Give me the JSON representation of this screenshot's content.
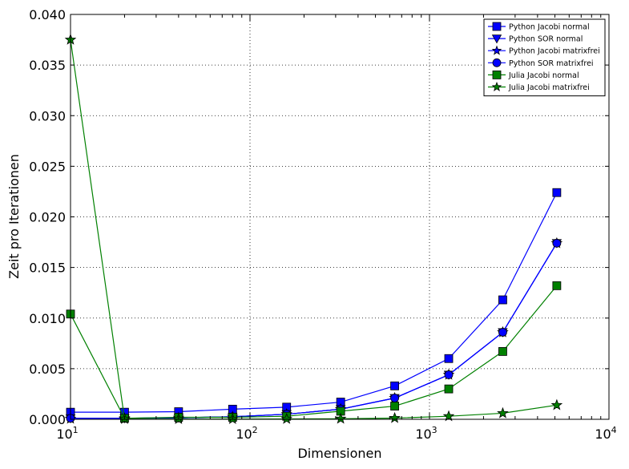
{
  "chart_data": {
    "type": "line",
    "xlabel": "Dimensionen",
    "ylabel": "Zeit pro Iterationen",
    "xscale": "log",
    "xlim": [
      10,
      10000
    ],
    "ylim": [
      0,
      0.04
    ],
    "grid": true,
    "legend_position": "top-right",
    "x_tick_labels": [
      {
        "base": "10",
        "exp": "1"
      },
      {
        "base": "10",
        "exp": "2"
      },
      {
        "base": "10",
        "exp": "3"
      },
      {
        "base": "10",
        "exp": "4"
      }
    ],
    "y_tick_labels": [
      "0.000",
      "0.005",
      "0.010",
      "0.015",
      "0.020",
      "0.025",
      "0.030",
      "0.035",
      "0.040"
    ],
    "x": [
      10,
      20,
      40,
      80,
      160,
      320,
      640,
      1280,
      2560,
      5120
    ],
    "series": [
      {
        "name": "Python Jacobi normal",
        "color": "#0000ff",
        "marker": "square",
        "values": [
          0.0007,
          0.0007,
          0.00075,
          0.001,
          0.0012,
          0.0017,
          0.0033,
          0.006,
          0.0118,
          0.0224
        ]
      },
      {
        "name": "Python SOR normal",
        "color": "#0000ff",
        "marker": "triangle-down",
        "values": [
          0.0001,
          0.0001,
          0.00015,
          0.00025,
          0.0005,
          0.001,
          0.0021,
          0.0044,
          0.0086,
          0.0174
        ]
      },
      {
        "name": "Python Jacobi matrixfrei",
        "color": "#0000ff",
        "marker": "star",
        "values": [
          5e-05,
          0.0001,
          0.00015,
          0.00025,
          0.0005,
          0.001,
          0.0021,
          0.0044,
          0.0086,
          0.0174
        ]
      },
      {
        "name": "Python SOR matrixfrei",
        "color": "#0000ff",
        "marker": "circle",
        "values": [
          0.0001,
          0.0001,
          0.00015,
          0.00025,
          0.0005,
          0.001,
          0.0021,
          0.0044,
          0.0086,
          0.0174
        ]
      },
      {
        "name": "Julia Jacobi normal",
        "color": "#008000",
        "marker": "square",
        "values": [
          0.0104,
          0.0001,
          0.0002,
          0.0002,
          0.0003,
          0.0008,
          0.0013,
          0.003,
          0.0067,
          0.0132
        ]
      },
      {
        "name": "Julia Jacobi matrixfrei",
        "color": "#008000",
        "marker": "star",
        "values": [
          0.0375,
          3e-05,
          2e-05,
          2e-05,
          3e-05,
          5e-05,
          0.00012,
          0.0003,
          0.0006,
          0.0014
        ]
      }
    ]
  }
}
